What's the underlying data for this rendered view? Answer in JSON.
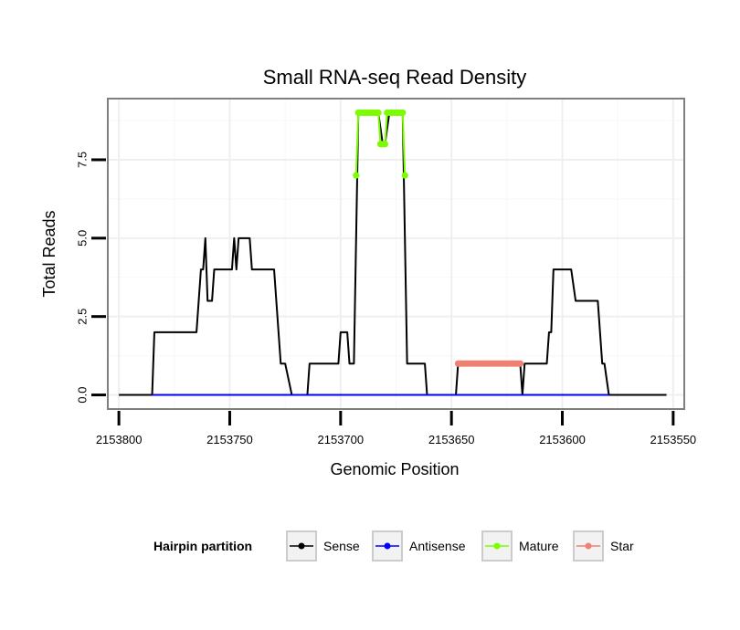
{
  "chart_data": {
    "type": "line",
    "title": "Small RNA-seq Read Density",
    "xlabel": "Genomic Position",
    "ylabel": "Total Reads",
    "xlim": [
      2153805,
      2153545
    ],
    "ylim": [
      -0.45,
      9.45
    ],
    "x_reversed": true,
    "xticks": [
      2153800,
      2153750,
      2153700,
      2153650,
      2153600,
      2153550
    ],
    "xtick_labels": [
      "2153800",
      "2153750",
      "2153700",
      "2153650",
      "2153600",
      "2153550"
    ],
    "yticks": [
      0,
      2.5,
      5,
      7.5
    ],
    "ytick_labels": [
      "0.0",
      "2.5",
      "5.0",
      "7.5"
    ],
    "grid": true,
    "legend": {
      "title": "Hairpin partition",
      "position": "bottom",
      "entries": [
        {
          "label": "Sense",
          "color": "#000000"
        },
        {
          "label": "Antisense",
          "color": "#0000ff"
        },
        {
          "label": "Mature",
          "color": "#7cfc00"
        },
        {
          "label": "Star",
          "color": "#f08070"
        }
      ]
    },
    "series": [
      {
        "name": "Sense",
        "color": "#000000",
        "points": [
          [
            2153800,
            0
          ],
          [
            2153785,
            0
          ],
          [
            2153784,
            2
          ],
          [
            2153765,
            2
          ],
          [
            2153763,
            4
          ],
          [
            2153762,
            4
          ],
          [
            2153761,
            5
          ],
          [
            2153760,
            3
          ],
          [
            2153758,
            3
          ],
          [
            2153757,
            4
          ],
          [
            2153749,
            4
          ],
          [
            2153748,
            5
          ],
          [
            2153747,
            4
          ],
          [
            2153746,
            5
          ],
          [
            2153741,
            5
          ],
          [
            2153740,
            4
          ],
          [
            2153730,
            4
          ],
          [
            2153727,
            1
          ],
          [
            2153725,
            1
          ],
          [
            2153722,
            0
          ],
          [
            2153715,
            0
          ],
          [
            2153714,
            1
          ],
          [
            2153701,
            1
          ],
          [
            2153700,
            2
          ],
          [
            2153697,
            2
          ],
          [
            2153696,
            1
          ],
          [
            2153694,
            1
          ],
          [
            2153692,
            9
          ],
          [
            2153683,
            9
          ],
          [
            2153681,
            8
          ],
          [
            2153680,
            8
          ],
          [
            2153678,
            9
          ],
          [
            2153672,
            9
          ],
          [
            2153670,
            1
          ],
          [
            2153662,
            1
          ],
          [
            2153661,
            0
          ],
          [
            2153648,
            0
          ],
          [
            2153647,
            1
          ],
          [
            2153619,
            1
          ],
          [
            2153618,
            0
          ],
          [
            2153617,
            1
          ],
          [
            2153607,
            1
          ],
          [
            2153606,
            2
          ],
          [
            2153605,
            2
          ],
          [
            2153604,
            4
          ],
          [
            2153596,
            4
          ],
          [
            2153594,
            3
          ],
          [
            2153584,
            3
          ],
          [
            2153582,
            1
          ],
          [
            2153581,
            1
          ],
          [
            2153579,
            0
          ],
          [
            2153553,
            0
          ]
        ]
      },
      {
        "name": "Antisense",
        "color": "#0000ff",
        "points": [
          [
            2153785,
            0
          ],
          [
            2153579,
            0
          ]
        ]
      },
      {
        "name": "Mature",
        "color": "#7cfc00",
        "points": [
          [
            2153693,
            7
          ],
          [
            2153692,
            9
          ],
          [
            2153691,
            9
          ],
          [
            2153690,
            9
          ],
          [
            2153689,
            9
          ],
          [
            2153688,
            9
          ],
          [
            2153687,
            9
          ],
          [
            2153686,
            9
          ],
          [
            2153685,
            9
          ],
          [
            2153684,
            9
          ],
          [
            2153683,
            9
          ],
          [
            2153682,
            8
          ],
          [
            2153681,
            8
          ],
          [
            2153680,
            8
          ],
          [
            2153679,
            9
          ],
          [
            2153678,
            9
          ],
          [
            2153677,
            9
          ],
          [
            2153676,
            9
          ],
          [
            2153675,
            9
          ],
          [
            2153674,
            9
          ],
          [
            2153673,
            9
          ],
          [
            2153672,
            9
          ],
          [
            2153671,
            7
          ]
        ]
      },
      {
        "name": "Star",
        "color": "#f08070",
        "points": [
          [
            2153647,
            1
          ],
          [
            2153646,
            1
          ],
          [
            2153645,
            1
          ],
          [
            2153644,
            1
          ],
          [
            2153643,
            1
          ],
          [
            2153642,
            1
          ],
          [
            2153641,
            1
          ],
          [
            2153640,
            1
          ],
          [
            2153639,
            1
          ],
          [
            2153638,
            1
          ],
          [
            2153637,
            1
          ],
          [
            2153636,
            1
          ],
          [
            2153635,
            1
          ],
          [
            2153634,
            1
          ],
          [
            2153633,
            1
          ],
          [
            2153632,
            1
          ],
          [
            2153631,
            1
          ],
          [
            2153630,
            1
          ],
          [
            2153629,
            1
          ],
          [
            2153628,
            1
          ],
          [
            2153627,
            1
          ],
          [
            2153626,
            1
          ],
          [
            2153625,
            1
          ],
          [
            2153624,
            1
          ],
          [
            2153623,
            1
          ],
          [
            2153622,
            1
          ],
          [
            2153621,
            1
          ],
          [
            2153620,
            1
          ],
          [
            2153619,
            1
          ]
        ]
      }
    ]
  }
}
